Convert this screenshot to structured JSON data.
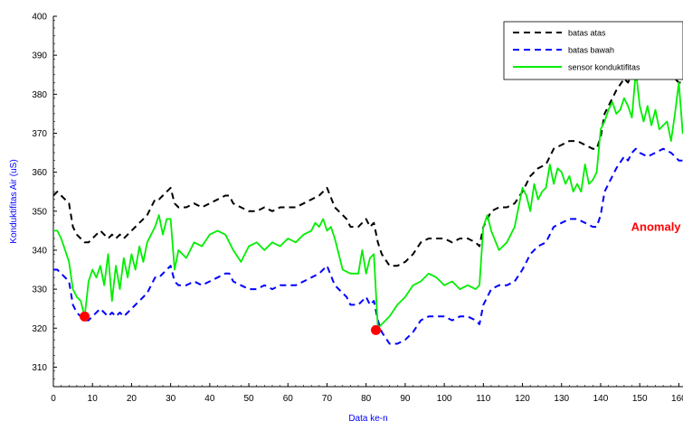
{
  "chart_data": {
    "type": "line",
    "title": "",
    "xlabel": "Data ke-n",
    "ylabel": "Konduktifitas Air (uS)",
    "xlim": [
      0,
      163
    ],
    "ylim": [
      305,
      400
    ],
    "xticks": [
      0,
      10,
      20,
      30,
      40,
      50,
      60,
      70,
      80,
      90,
      100,
      110,
      120,
      130,
      140,
      150,
      160
    ],
    "yticks": [
      310,
      320,
      330,
      340,
      350,
      360,
      370,
      380,
      390,
      400
    ],
    "grid": false,
    "legend_position": "top-right",
    "annotation": {
      "text": "Anomaly",
      "x": 160.5,
      "y": 345,
      "color": "#ff0000"
    },
    "series": [
      {
        "name": "batas atas",
        "style": "dashed",
        "color": "#000000",
        "x": [
          0,
          1,
          2,
          3,
          4,
          5,
          6,
          7,
          8,
          9,
          10,
          11,
          12,
          13,
          14,
          15,
          16,
          17,
          18,
          19,
          20,
          22,
          24,
          26,
          27,
          28,
          30,
          31,
          32,
          34,
          36,
          38,
          40,
          42,
          44,
          45,
          46,
          48,
          50,
          52,
          54,
          56,
          58,
          60,
          62,
          64,
          66,
          68,
          69,
          70,
          72,
          74,
          75,
          76,
          78,
          79,
          80,
          81,
          82,
          83,
          84,
          86,
          88,
          90,
          92,
          94,
          96,
          98,
          100,
          102,
          104,
          106,
          108,
          109,
          110,
          112,
          114,
          116,
          118,
          120,
          121,
          122,
          124,
          126,
          128,
          130,
          132,
          134,
          136,
          138,
          139,
          140,
          141,
          142,
          144,
          146,
          147,
          148,
          149,
          150,
          152,
          154,
          156,
          158,
          159,
          160,
          161,
          162,
          163
        ],
        "values": [
          354,
          355,
          354,
          353,
          352,
          346,
          344,
          343,
          342,
          342,
          343,
          344,
          345,
          344,
          343,
          344,
          343,
          344,
          343,
          344,
          345,
          347,
          349,
          353,
          353,
          354,
          356,
          352,
          351,
          351,
          352,
          351,
          352,
          353,
          354,
          354,
          352,
          351,
          350,
          350,
          351,
          350,
          351,
          351,
          351,
          352,
          353,
          354,
          355,
          356,
          351,
          349,
          348,
          346,
          346,
          347,
          348,
          346,
          347,
          342,
          339,
          336,
          336,
          337,
          339,
          342,
          343,
          343,
          343,
          342,
          343,
          343,
          342,
          341,
          346,
          350,
          351,
          351,
          352,
          355,
          357,
          359,
          361,
          362,
          366,
          367,
          368,
          368,
          367,
          366,
          366,
          369,
          375,
          377,
          381,
          384,
          383,
          385,
          386,
          385,
          384,
          385,
          386,
          385,
          384,
          383,
          383,
          383,
          383
        ]
      },
      {
        "name": "batas bawah",
        "style": "dashed",
        "color": "#0000ff",
        "x": [
          0,
          1,
          2,
          3,
          4,
          5,
          6,
          7,
          8,
          9,
          10,
          11,
          12,
          13,
          14,
          15,
          16,
          17,
          18,
          19,
          20,
          22,
          24,
          26,
          27,
          28,
          30,
          31,
          32,
          34,
          36,
          38,
          40,
          42,
          44,
          45,
          46,
          48,
          50,
          52,
          54,
          56,
          58,
          60,
          62,
          64,
          66,
          68,
          69,
          70,
          72,
          74,
          75,
          76,
          78,
          79,
          80,
          81,
          82,
          83,
          84,
          86,
          88,
          90,
          92,
          94,
          96,
          98,
          100,
          102,
          104,
          106,
          108,
          109,
          110,
          112,
          114,
          116,
          118,
          120,
          121,
          122,
          124,
          126,
          128,
          130,
          132,
          134,
          136,
          138,
          139,
          140,
          141,
          142,
          144,
          146,
          147,
          148,
          149,
          150,
          152,
          154,
          156,
          158,
          159,
          160,
          161,
          162,
          163
        ],
        "values": [
          335,
          335,
          334,
          333,
          332,
          326,
          324,
          323,
          322,
          322,
          323,
          324,
          325,
          324,
          323,
          324,
          323,
          324,
          323,
          324,
          325,
          327,
          329,
          333,
          333,
          334,
          336,
          332,
          331,
          331,
          332,
          331,
          332,
          333,
          334,
          334,
          332,
          331,
          330,
          330,
          331,
          330,
          331,
          331,
          331,
          332,
          333,
          334,
          335,
          336,
          331,
          329,
          328,
          326,
          326,
          327,
          328,
          326,
          327,
          322,
          319,
          316,
          316,
          317,
          319,
          322,
          323,
          323,
          323,
          322,
          323,
          323,
          322,
          321,
          326,
          330,
          331,
          331,
          332,
          335,
          337,
          339,
          341,
          342,
          346,
          347,
          348,
          348,
          347,
          346,
          346,
          349,
          355,
          357,
          361,
          364,
          363,
          365,
          366,
          365,
          364,
          365,
          366,
          365,
          364,
          363,
          363,
          363,
          363
        ]
      },
      {
        "name": "sensor konduktifitas",
        "style": "solid",
        "color": "#00ee00",
        "x": [
          0,
          1,
          2,
          3,
          4,
          5,
          6,
          7,
          8,
          9,
          10,
          11,
          12,
          13,
          14,
          15,
          16,
          17,
          18,
          19,
          20,
          21,
          22,
          23,
          24,
          25,
          26,
          27,
          28,
          29,
          30,
          31,
          32,
          34,
          36,
          38,
          40,
          42,
          44,
          45,
          46,
          48,
          50,
          52,
          54,
          56,
          58,
          60,
          62,
          64,
          66,
          67,
          68,
          69,
          70,
          71,
          72,
          74,
          76,
          77,
          78,
          79,
          80,
          81,
          82,
          83,
          84,
          86,
          88,
          90,
          92,
          94,
          96,
          98,
          100,
          102,
          104,
          106,
          108,
          109,
          110,
          111,
          112,
          114,
          116,
          118,
          120,
          121,
          122,
          123,
          124,
          125,
          126,
          127,
          128,
          129,
          130,
          131,
          132,
          133,
          134,
          135,
          136,
          137,
          138,
          139,
          140,
          141,
          142,
          143,
          144,
          145,
          146,
          147,
          148,
          149,
          150,
          151,
          152,
          153,
          154,
          155,
          156,
          157,
          158,
          159,
          160,
          161,
          162,
          163
        ],
        "values": [
          345,
          345,
          343,
          340,
          337,
          330,
          328,
          327,
          323,
          332,
          335,
          333,
          336,
          331,
          339,
          327,
          336,
          330,
          338,
          333,
          339,
          335,
          341,
          337,
          342,
          344,
          346,
          349,
          344,
          348,
          348,
          335,
          340,
          338,
          342,
          341,
          344,
          345,
          344,
          342,
          340,
          337,
          341,
          342,
          340,
          342,
          341,
          343,
          342,
          344,
          345,
          347,
          346,
          348,
          345,
          346,
          343,
          335,
          334,
          334,
          334,
          340,
          334,
          338,
          339,
          320,
          321,
          323,
          326,
          328,
          331,
          332,
          334,
          333,
          331,
          332,
          330,
          331,
          330,
          331,
          346,
          349,
          345,
          340,
          342,
          346,
          356,
          354,
          350,
          357,
          353,
          355,
          356,
          362,
          357,
          361,
          360,
          357,
          359,
          355,
          357,
          355,
          362,
          357,
          358,
          360,
          371,
          373,
          376,
          378,
          375,
          376,
          379,
          377,
          374,
          386,
          377,
          373,
          377,
          372,
          376,
          371,
          372,
          373,
          368,
          375,
          383,
          370,
          370,
          372
        ]
      }
    ],
    "markers": [
      {
        "x": 8,
        "y": 323,
        "color": "#ff0000"
      },
      {
        "x": 82.5,
        "y": 319.5,
        "color": "#ff0000"
      }
    ]
  }
}
